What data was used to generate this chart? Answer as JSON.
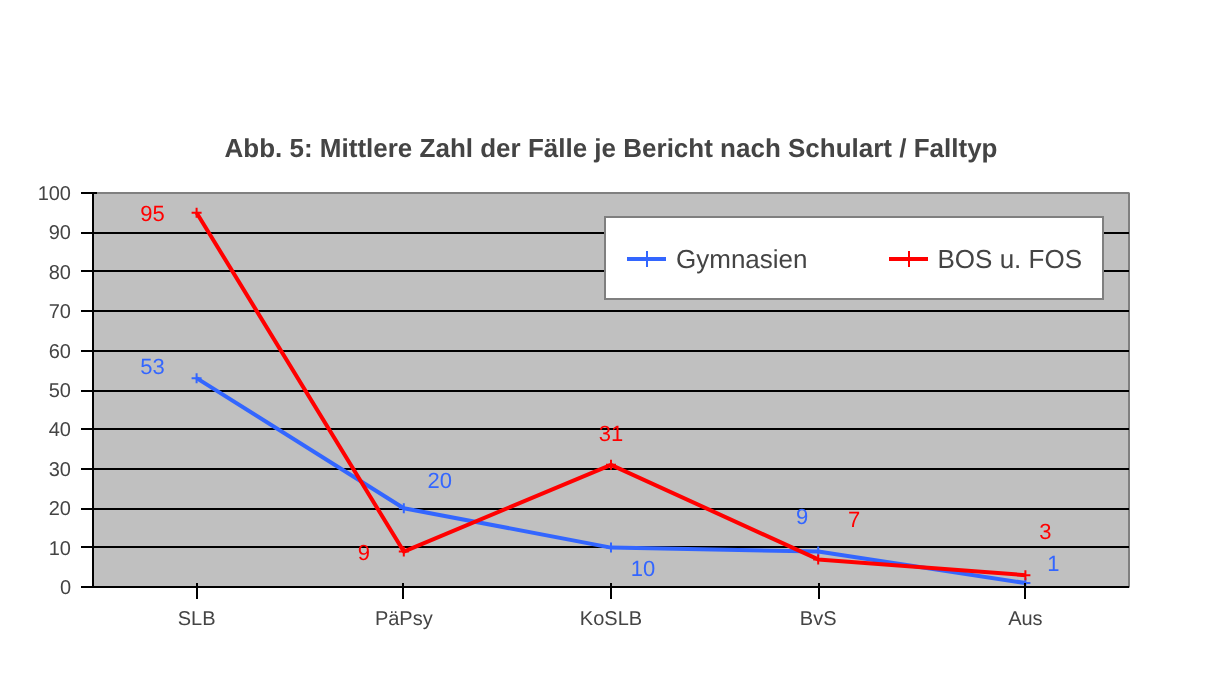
{
  "chart_data": {
    "type": "line",
    "title": "Abb. 5: Mittlere Zahl der Fälle je Bericht nach Schulart / Falltyp",
    "categories": [
      "SLB",
      "PäPsy",
      "KoSLB",
      "BvS",
      "Aus"
    ],
    "series": [
      {
        "name": "Gymnasien",
        "color": "#3366ff",
        "values": [
          53,
          20,
          10,
          9,
          1
        ]
      },
      {
        "name": "BOS u. FOS",
        "color": "#ff0000",
        "values": [
          95,
          9,
          31,
          7,
          3
        ]
      }
    ],
    "ylim": [
      0,
      100
    ],
    "yticks": [
      0,
      10,
      20,
      30,
      40,
      50,
      60,
      70,
      80,
      90,
      100
    ],
    "grid": "y",
    "legend": "top right",
    "marker": "cross",
    "line_style": "solid",
    "data_labels": true
  }
}
